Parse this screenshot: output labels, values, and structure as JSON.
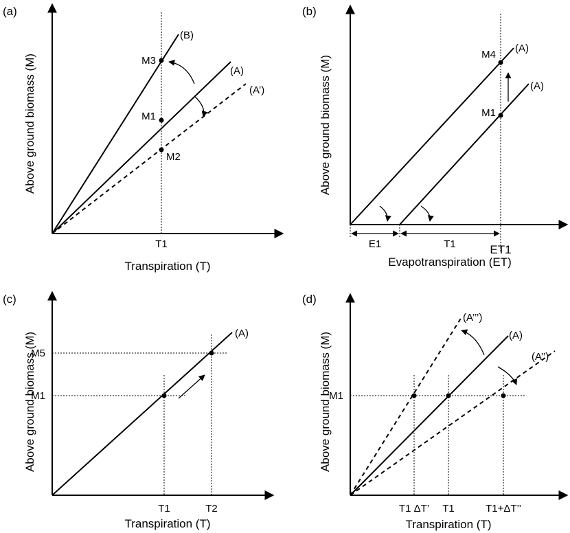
{
  "panels": {
    "a": {
      "label": "(a)",
      "ylabel": "Above ground biomass (M)",
      "xlabel": "Transpiration (T)",
      "tick_t1": "T1",
      "line_b": "(B)",
      "line_a": "(A)",
      "line_a_prime": "(A’)",
      "m3": "M3",
      "m1": "M1",
      "m2": "M2"
    },
    "b": {
      "label": "(b)",
      "ylabel": "Above ground biomass (M)",
      "xlabel": "Evapotranspiration (ET)",
      "e1": "E1",
      "t1": "T1",
      "et1": "ET1",
      "line_a_upper": "(A)",
      "line_a_lower": "(A)",
      "m4": "M4",
      "m1": "M1"
    },
    "c": {
      "label": "(c)",
      "ylabel": "Above ground biomass (M)",
      "xlabel": "Transpiration (T)",
      "tick_t1": "T1",
      "tick_t2": "T2",
      "line_a": "(A)",
      "m5": "M5",
      "m1": "M1"
    },
    "d": {
      "label": "(d)",
      "ylabel": "Above ground biomass (M)",
      "xlabel": "Transpiration (T)",
      "tick_left": "T1 ΔT’",
      "tick_t1": "T1",
      "tick_right": "T1+ΔT’’",
      "line_a3": "(A’’’)",
      "line_a": "(A)",
      "line_a2": "(A’’)",
      "m1": "M1"
    }
  }
}
